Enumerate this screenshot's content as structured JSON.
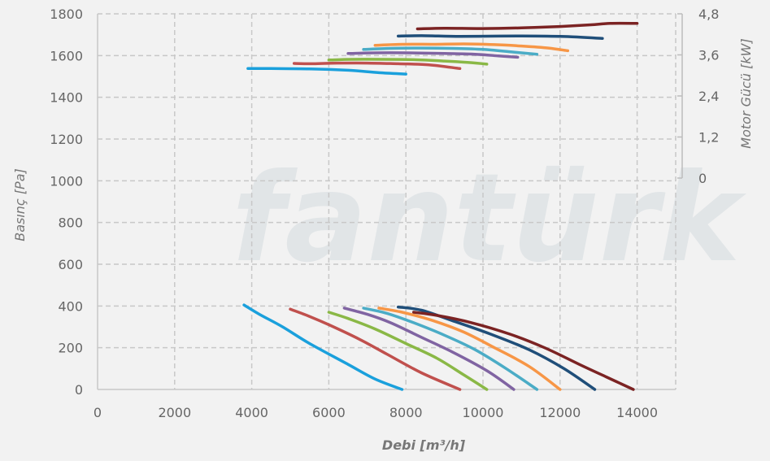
{
  "chart_data": {
    "type": "line",
    "title": "",
    "watermark": "fantürk",
    "xlabel": "Debi [m³/h]",
    "ylabel": "Basınç [Pa]",
    "y2label": "Motor Gücü [kW]",
    "xlim": [
      0,
      15000
    ],
    "ylim": [
      0,
      1800
    ],
    "y2lim": [
      0,
      4.8
    ],
    "xticks": [
      "0",
      "2000",
      "4000",
      "6000",
      "8000",
      "10000",
      "12000",
      "14000"
    ],
    "yticks": [
      "0",
      "200",
      "400",
      "600",
      "800",
      "1000",
      "1200",
      "1400",
      "1600",
      "1800"
    ],
    "y2ticks": [
      "0",
      "1,2",
      "2,4",
      "3,6",
      "4,8"
    ],
    "grid": true,
    "legend": "none",
    "pressure_series": [
      {
        "color": "#1aa0dc",
        "points": [
          [
            3800,
            405
          ],
          [
            4200,
            360
          ],
          [
            4800,
            300
          ],
          [
            5500,
            220
          ],
          [
            6500,
            120
          ],
          [
            7200,
            50
          ],
          [
            7900,
            0
          ]
        ]
      },
      {
        "color": "#c0504d",
        "points": [
          [
            5000,
            385
          ],
          [
            5500,
            350
          ],
          [
            6000,
            310
          ],
          [
            6800,
            240
          ],
          [
            7500,
            170
          ],
          [
            8400,
            80
          ],
          [
            9400,
            0
          ]
        ]
      },
      {
        "color": "#8ab846",
        "points": [
          [
            6000,
            370
          ],
          [
            6500,
            340
          ],
          [
            7200,
            290
          ],
          [
            8000,
            220
          ],
          [
            8800,
            150
          ],
          [
            9500,
            70
          ],
          [
            10100,
            0
          ]
        ]
      },
      {
        "color": "#8064a2",
        "points": [
          [
            6400,
            390
          ],
          [
            7000,
            360
          ],
          [
            7600,
            320
          ],
          [
            8400,
            250
          ],
          [
            9200,
            180
          ],
          [
            10100,
            90
          ],
          [
            10800,
            0
          ]
        ]
      },
      {
        "color": "#4bacc6",
        "points": [
          [
            6900,
            390
          ],
          [
            7500,
            365
          ],
          [
            8200,
            320
          ],
          [
            9000,
            260
          ],
          [
            9800,
            190
          ],
          [
            10600,
            100
          ],
          [
            11400,
            0
          ]
        ]
      },
      {
        "color": "#f79646",
        "points": [
          [
            7300,
            390
          ],
          [
            7900,
            370
          ],
          [
            8700,
            330
          ],
          [
            9500,
            275
          ],
          [
            10300,
            200
          ],
          [
            11200,
            110
          ],
          [
            12000,
            0
          ]
        ]
      },
      {
        "color": "#1f4e79",
        "points": [
          [
            7800,
            395
          ],
          [
            8400,
            380
          ],
          [
            9200,
            330
          ],
          [
            10200,
            265
          ],
          [
            11200,
            190
          ],
          [
            12100,
            100
          ],
          [
            12900,
            0
          ]
        ]
      },
      {
        "color": "#7b2323",
        "points": [
          [
            8200,
            370
          ],
          [
            8800,
            355
          ],
          [
            9700,
            320
          ],
          [
            10700,
            265
          ],
          [
            11600,
            200
          ],
          [
            12500,
            120
          ],
          [
            13200,
            60
          ],
          [
            13900,
            0
          ]
        ]
      }
    ],
    "power_series": [
      {
        "color": "#1aa0dc",
        "points": [
          [
            3900,
            3.2
          ],
          [
            4500,
            3.2
          ],
          [
            5500,
            3.19
          ],
          [
            6500,
            3.15
          ],
          [
            7300,
            3.08
          ],
          [
            8000,
            3.04
          ]
        ]
      },
      {
        "color": "#c0504d",
        "points": [
          [
            5100,
            3.35
          ],
          [
            5600,
            3.34
          ],
          [
            6200,
            3.36
          ],
          [
            7000,
            3.36
          ],
          [
            7800,
            3.34
          ],
          [
            8600,
            3.31
          ],
          [
            9400,
            3.2
          ]
        ]
      },
      {
        "color": "#8ab846",
        "points": [
          [
            6000,
            3.45
          ],
          [
            6600,
            3.47
          ],
          [
            7400,
            3.47
          ],
          [
            8200,
            3.46
          ],
          [
            9000,
            3.42
          ],
          [
            9600,
            3.38
          ],
          [
            10100,
            3.33
          ]
        ]
      },
      {
        "color": "#8064a2",
        "points": [
          [
            6500,
            3.64
          ],
          [
            7200,
            3.66
          ],
          [
            8000,
            3.66
          ],
          [
            9000,
            3.64
          ],
          [
            9800,
            3.62
          ],
          [
            10400,
            3.57
          ],
          [
            10900,
            3.53
          ]
        ]
      },
      {
        "color": "#4bacc6",
        "points": [
          [
            6900,
            3.76
          ],
          [
            7600,
            3.79
          ],
          [
            8400,
            3.8
          ],
          [
            9200,
            3.79
          ],
          [
            10000,
            3.76
          ],
          [
            10800,
            3.68
          ],
          [
            11400,
            3.62
          ]
        ]
      },
      {
        "color": "#f79646",
        "points": [
          [
            7200,
            3.88
          ],
          [
            7900,
            3.91
          ],
          [
            8700,
            3.91
          ],
          [
            9500,
            3.92
          ],
          [
            10300,
            3.9
          ],
          [
            11000,
            3.86
          ],
          [
            11700,
            3.8
          ],
          [
            12200,
            3.72
          ]
        ]
      },
      {
        "color": "#1f4e79",
        "points": [
          [
            7800,
            4.15
          ],
          [
            8400,
            4.16
          ],
          [
            9400,
            4.14
          ],
          [
            10400,
            4.15
          ],
          [
            11400,
            4.15
          ],
          [
            12300,
            4.13
          ],
          [
            13100,
            4.08
          ]
        ]
      },
      {
        "color": "#7b2323",
        "points": [
          [
            8300,
            4.36
          ],
          [
            9000,
            4.38
          ],
          [
            10000,
            4.37
          ],
          [
            11000,
            4.39
          ],
          [
            12000,
            4.43
          ],
          [
            12800,
            4.48
          ],
          [
            13300,
            4.52
          ],
          [
            14000,
            4.52
          ]
        ]
      }
    ]
  }
}
